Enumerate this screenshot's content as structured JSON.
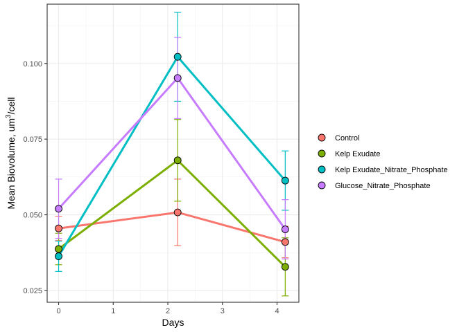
{
  "chart_data": {
    "type": "line",
    "title": "",
    "xlabel": "Days",
    "ylabel_main": "Mean Biovolume, um",
    "ylabel_sup": "3",
    "ylabel_tail": "/cell",
    "xlim": [
      -0.21,
      4.4
    ],
    "ylim": [
      0.0211,
      0.1196
    ],
    "x_ticks": [
      0,
      1,
      2,
      3,
      4
    ],
    "x_tick_labels": [
      "0",
      "1",
      "2",
      "3",
      "4"
    ],
    "y_ticks": [
      0.025,
      0.05,
      0.075,
      0.1
    ],
    "y_tick_labels": [
      "0.025",
      "0.050",
      "0.075",
      "0.100"
    ],
    "grid": true,
    "legend_position": "right",
    "series": [
      {
        "name": "Control",
        "color": "#F8766D",
        "x": [
          0,
          2.18,
          4.15
        ],
        "y": [
          0.0455,
          0.0508,
          0.041
        ],
        "err_low": [
          0.0415,
          0.0398,
          0.0358
        ],
        "err_high": [
          0.0495,
          0.0618,
          0.0462
        ]
      },
      {
        "name": "Kelp Exudate",
        "color": "#7CAE00",
        "x": [
          0,
          2.18,
          4.15
        ],
        "y": [
          0.0387,
          0.068,
          0.0328
        ],
        "err_low": [
          0.0335,
          0.0545,
          0.0232
        ],
        "err_high": [
          0.0439,
          0.0815,
          0.0424
        ]
      },
      {
        "name": "Kelp Exudate_Nitrate_Phosphate",
        "color": "#00BFC4",
        "x": [
          0,
          2.18,
          4.15
        ],
        "y": [
          0.0363,
          0.1022,
          0.0613
        ],
        "err_low": [
          0.0313,
          0.0875,
          0.0515
        ],
        "err_high": [
          0.0413,
          0.1169,
          0.0711
        ]
      },
      {
        "name": "Glucose_Nitrate_Phosphate",
        "color": "#C77CFF",
        "x": [
          0,
          2.18,
          4.15
        ],
        "y": [
          0.052,
          0.0952,
          0.0452
        ],
        "err_low": [
          0.0422,
          0.0818,
          0.0354
        ],
        "err_high": [
          0.0618,
          0.1086,
          0.055
        ]
      }
    ]
  }
}
